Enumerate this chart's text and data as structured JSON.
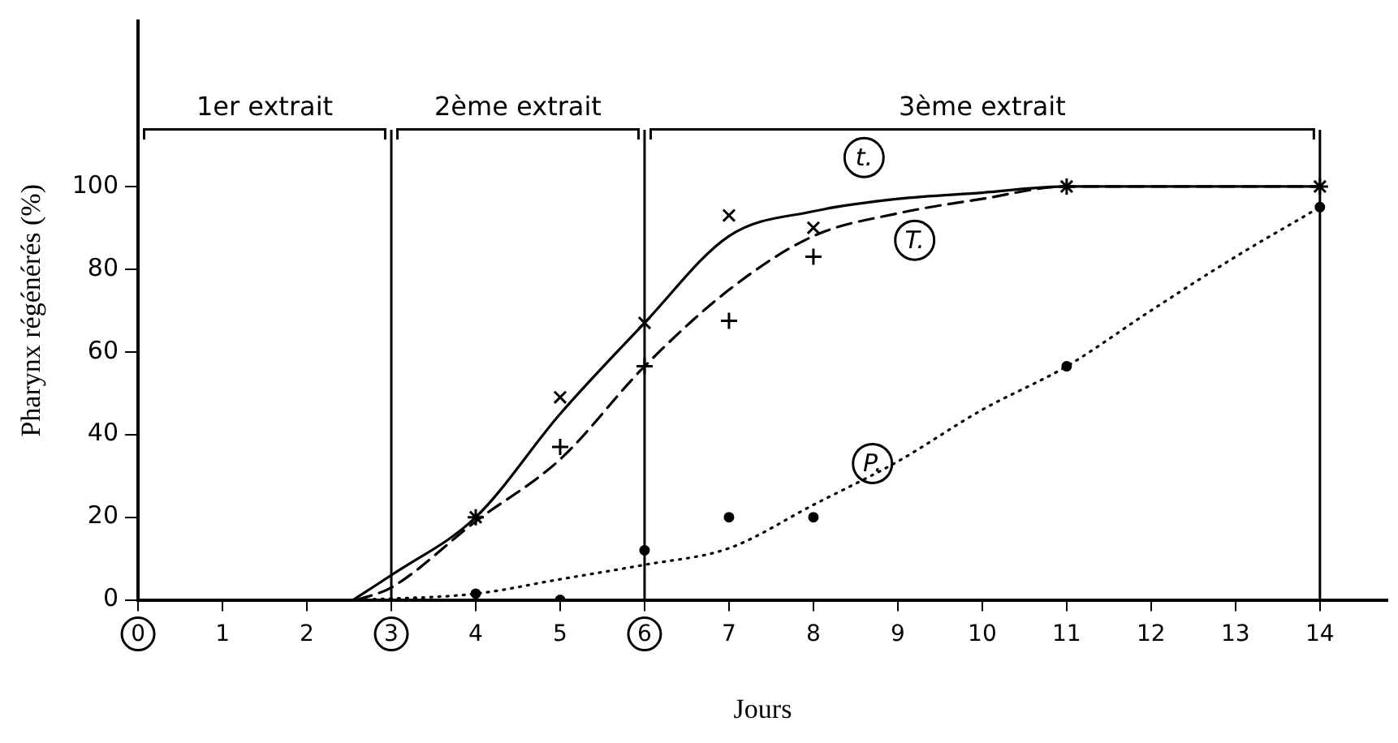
{
  "chart_data": {
    "type": "line",
    "xlabel": "Jours",
    "ylabel": "Pharynx régénérés (%)",
    "xlim": [
      0,
      14.8
    ],
    "ylim": [
      0,
      140
    ],
    "xticks": [
      0,
      1,
      2,
      3,
      4,
      5,
      6,
      7,
      8,
      9,
      10,
      11,
      12,
      13,
      14
    ],
    "yticks": [
      0,
      20,
      40,
      60,
      80,
      100
    ],
    "grid": false,
    "legend": false,
    "series": [
      {
        "type": "scatter",
        "color": "#000000",
        "marker": "cross",
        "x": [
          4,
          5,
          6,
          7,
          8,
          11,
          14
        ],
        "values": [
          20,
          49,
          67,
          93,
          90,
          100,
          100
        ]
      },
      {
        "type": "scatter",
        "color": "#000000",
        "marker": "cross",
        "x": [
          4,
          5,
          6,
          7,
          8,
          11,
          14
        ],
        "values": [
          20,
          37,
          56.5,
          67.5,
          83,
          100,
          100
        ]
      },
      {
        "type": "scatter",
        "color": "#000000",
        "marker": "circle",
        "x": [
          4,
          5,
          6,
          7,
          8,
          11,
          14
        ],
        "values": [
          1.5,
          0,
          12,
          20,
          20,
          56.5,
          95
        ]
      },
      {
        "color": "#000000",
        "marker": "none",
        "line_style": "solid",
        "x": [
          2.55,
          3,
          4,
          5,
          6,
          7,
          8,
          9,
          10,
          11,
          14
        ],
        "values": [
          0,
          6,
          20,
          45,
          67,
          88,
          94,
          97,
          98.5,
          100,
          100
        ]
      },
      {
        "color": "#000000",
        "marker": "none",
        "line_style": "dashed",
        "x": [
          2.6,
          3,
          4,
          5,
          6,
          7,
          8,
          9,
          10,
          11,
          14
        ],
        "values": [
          0,
          3,
          19,
          34,
          56.5,
          75,
          88,
          93.5,
          97,
          100,
          100
        ]
      },
      {
        "color": "#000000",
        "marker": "none",
        "line_style": "dotted",
        "x": [
          2.6,
          4,
          5,
          6,
          7,
          8,
          9,
          10,
          11,
          12,
          13,
          14
        ],
        "values": [
          0,
          1.5,
          5,
          8.5,
          12.5,
          23,
          33.5,
          46,
          56.5,
          70,
          83,
          95
        ]
      }
    ],
    "ref_lines": [
      {
        "axis": "x",
        "value": 3
      },
      {
        "axis": "x",
        "value": 6
      },
      {
        "axis": "x",
        "value": 14
      }
    ],
    "annotations": [
      "1er extrait",
      "2ème extrait",
      "3ème extrait",
      {
        "text": "t.",
        "x": 8.6,
        "y": 107
      },
      {
        "text": "T.",
        "x": 9.2,
        "y": 87
      },
      {
        "text": "P.",
        "x": 8.7,
        "y": 33
      }
    ]
  }
}
